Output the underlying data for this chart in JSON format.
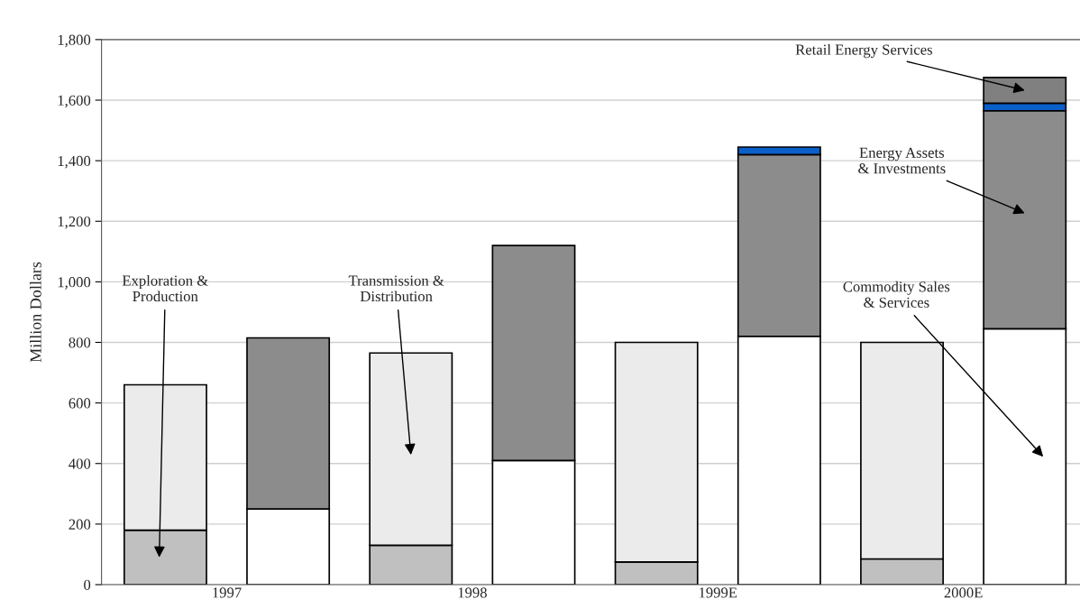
{
  "chart_data": {
    "type": "bar",
    "stacked": true,
    "ylabel": "Million Dollars",
    "categories": [
      "1997",
      null,
      "1998",
      null,
      "1999E",
      null,
      "2000E",
      null
    ],
    "series": [
      {
        "name": "Exploration & Production",
        "color": "#c0c0c0",
        "values": [
          180,
          null,
          130,
          null,
          75,
          null,
          85,
          null
        ]
      },
      {
        "name": "Transmission & Distribution",
        "color": "#ebebeb",
        "values": [
          480,
          null,
          635,
          null,
          725,
          null,
          715,
          null
        ]
      },
      {
        "name": "Commodity Sales & Services",
        "color": "#ffffff",
        "values": [
          null,
          250,
          null,
          410,
          null,
          820,
          null,
          845
        ]
      },
      {
        "name": "Energy Assets & Investments",
        "color": "#8c8c8c",
        "values": [
          null,
          565,
          null,
          710,
          null,
          600,
          null,
          720
        ]
      },
      {
        "color": "#0a5fc8",
        "values": [
          null,
          null,
          null,
          null,
          null,
          25,
          null,
          25
        ]
      },
      {
        "name": "Retail Energy Services",
        "color": "#808080",
        "values": [
          null,
          null,
          null,
          null,
          null,
          null,
          null,
          85
        ]
      }
    ],
    "ylim": [
      0,
      1800
    ],
    "yticks": [
      {
        "value": 0,
        "label": "0"
      },
      {
        "value": 200,
        "label": "200"
      },
      {
        "value": 400,
        "label": "400"
      },
      {
        "value": 600,
        "label": "600"
      },
      {
        "value": 800,
        "label": "800"
      },
      {
        "value": 1000,
        "label": "1,000"
      },
      {
        "value": 1200,
        "label": "1,200"
      },
      {
        "value": 1400,
        "label": "1,400"
      },
      {
        "value": 1600,
        "label": "1,600"
      },
      {
        "value": 1800,
        "label": "1,800"
      }
    ],
    "grid": "y",
    "legend": false
  }
}
